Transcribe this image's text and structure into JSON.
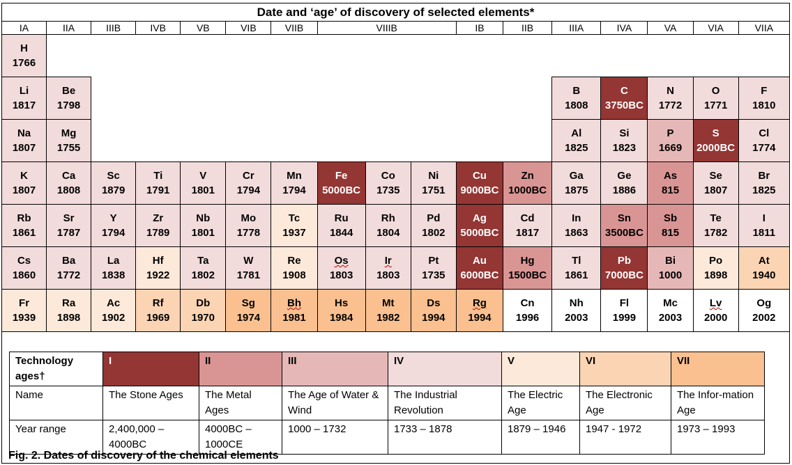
{
  "title": "Date and ‘age’ of discovery of selected elements*",
  "groups": [
    "IA",
    "IIA",
    "IIIB",
    "IVB",
    "VB",
    "VIB",
    "VIIB",
    "VIIIB",
    "IB",
    "IIB",
    "IIIA",
    "IVA",
    "VA",
    "VIA",
    "VIIA"
  ],
  "elements": {
    "H": {
      "symbol": "H",
      "year": "1766"
    },
    "Li": {
      "symbol": "Li",
      "year": "1817"
    },
    "Be": {
      "symbol": "Be",
      "year": "1798"
    },
    "B": {
      "symbol": "B",
      "year": "1808"
    },
    "C": {
      "symbol": "C",
      "year": "3750BC"
    },
    "N": {
      "symbol": "N",
      "year": "1772"
    },
    "O": {
      "symbol": "O",
      "year": "1771"
    },
    "F": {
      "symbol": "F",
      "year": "1810"
    },
    "Na": {
      "symbol": "Na",
      "year": "1807"
    },
    "Mg": {
      "symbol": "Mg",
      "year": "1755"
    },
    "Al": {
      "symbol": "Al",
      "year": "1825"
    },
    "Si": {
      "symbol": "Si",
      "year": "1823"
    },
    "P": {
      "symbol": "P",
      "year": "1669"
    },
    "S": {
      "symbol": "S",
      "year": "2000BC"
    },
    "Cl": {
      "symbol": "Cl",
      "year": "1774"
    },
    "K": {
      "symbol": "K",
      "year": "1807"
    },
    "Ca": {
      "symbol": "Ca",
      "year": "1808"
    },
    "Sc": {
      "symbol": "Sc",
      "year": "1879"
    },
    "Ti": {
      "symbol": "Ti",
      "year": "1791"
    },
    "V": {
      "symbol": "V",
      "year": "1801"
    },
    "Cr": {
      "symbol": "Cr",
      "year": "1794"
    },
    "Mn": {
      "symbol": "Mn",
      "year": "1794"
    },
    "Fe": {
      "symbol": "Fe",
      "year": "5000BC"
    },
    "Co": {
      "symbol": "Co",
      "year": "1735"
    },
    "Ni": {
      "symbol": "Ni",
      "year": "1751"
    },
    "Cu": {
      "symbol": "Cu",
      "year": "9000BC"
    },
    "Zn": {
      "symbol": "Zn",
      "year": "1000BC"
    },
    "Ga": {
      "symbol": "Ga",
      "year": "1875"
    },
    "Ge": {
      "symbol": "Ge",
      "year": "1886"
    },
    "As": {
      "symbol": "As",
      "year": "815"
    },
    "Se": {
      "symbol": "Se",
      "year": "1807"
    },
    "Br": {
      "symbol": "Br",
      "year": "1825"
    },
    "Rb": {
      "symbol": "Rb",
      "year": "1861"
    },
    "Sr": {
      "symbol": "Sr",
      "year": "1787"
    },
    "Y": {
      "symbol": "Y",
      "year": "1794"
    },
    "Zr": {
      "symbol": "Zr",
      "year": "1789"
    },
    "Nb": {
      "symbol": "Nb",
      "year": "1801"
    },
    "Mo": {
      "symbol": "Mo",
      "year": "1778"
    },
    "Tc": {
      "symbol": "Tc",
      "year": "1937"
    },
    "Ru": {
      "symbol": "Ru",
      "year": "1844"
    },
    "Rh": {
      "symbol": "Rh",
      "year": "1804"
    },
    "Pd": {
      "symbol": "Pd",
      "year": "1802"
    },
    "Ag": {
      "symbol": "Ag",
      "year": "5000BC"
    },
    "Cd": {
      "symbol": "Cd",
      "year": "1817"
    },
    "In": {
      "symbol": "In",
      "year": "1863"
    },
    "Sn": {
      "symbol": "Sn",
      "year": "3500BC"
    },
    "Sb": {
      "symbol": "Sb",
      "year": "815"
    },
    "Te": {
      "symbol": "Te",
      "year": "1782"
    },
    "I": {
      "symbol": "I",
      "year": "1811"
    },
    "Cs": {
      "symbol": "Cs",
      "year": "1860"
    },
    "Ba": {
      "symbol": "Ba",
      "year": "1772"
    },
    "La": {
      "symbol": "La",
      "year": "1838"
    },
    "Hf": {
      "symbol": "Hf",
      "year": "1922"
    },
    "Ta": {
      "symbol": "Ta",
      "year": "1802"
    },
    "W": {
      "symbol": "W",
      "year": "1781"
    },
    "Re": {
      "symbol": "Re",
      "year": "1908"
    },
    "Os": {
      "symbol": "Os",
      "year": "1803"
    },
    "Ir": {
      "symbol": "Ir",
      "year": "1803"
    },
    "Pt": {
      "symbol": "Pt",
      "year": "1735"
    },
    "Au": {
      "symbol": "Au",
      "year": "6000BC"
    },
    "Hg": {
      "symbol": "Hg",
      "year": "1500BC"
    },
    "Tl": {
      "symbol": "Tl",
      "year": "1861"
    },
    "Pb": {
      "symbol": "Pb",
      "year": "7000BC"
    },
    "Bi": {
      "symbol": "Bi",
      "year": "1000"
    },
    "Po": {
      "symbol": "Po",
      "year": "1898"
    },
    "At": {
      "symbol": "At",
      "year": "1940"
    },
    "Fr": {
      "symbol": "Fr",
      "year": "1939"
    },
    "Ra": {
      "symbol": "Ra",
      "year": "1898"
    },
    "Ac": {
      "symbol": "Ac",
      "year": "1902"
    },
    "Rf": {
      "symbol": "Rf",
      "year": "1969"
    },
    "Db": {
      "symbol": "Db",
      "year": "1970"
    },
    "Sg": {
      "symbol": "Sg",
      "year": "1974"
    },
    "Bh": {
      "symbol": "Bh",
      "year": "1981"
    },
    "Hs": {
      "symbol": "Hs",
      "year": "1984"
    },
    "Mt": {
      "symbol": "Mt",
      "year": "1982"
    },
    "Ds": {
      "symbol": "Ds",
      "year": "1994"
    },
    "Rg": {
      "symbol": "Rg",
      "year": "1994"
    },
    "Cn": {
      "symbol": "Cn",
      "year": "1996"
    },
    "Nh": {
      "symbol": "Nh",
      "year": "2003"
    },
    "Fl": {
      "symbol": "Fl",
      "year": "1999"
    },
    "Mc": {
      "symbol": "Mc",
      "year": "2003"
    },
    "Lv": {
      "symbol": "Lv",
      "year": "2000"
    },
    "Og": {
      "symbol": "Og",
      "year": "2002"
    }
  },
  "age_colors": {
    "I": "#943634",
    "II": "#d99594",
    "III": "#e5b8b7",
    "IV": "#f2dbdb",
    "V": "#fde9d9",
    "VI": "#fbd4b4",
    "VII": "#fac090",
    "none": "#ffffff"
  },
  "legend": {
    "header": "Technology ages†",
    "name_label": "Name",
    "range_label": "Year range",
    "ages": [
      {
        "numeral": "I",
        "name": "The Stone Ages",
        "range": "2,400,000 – 4000BC"
      },
      {
        "numeral": "II",
        "name": "The Metal Ages",
        "range": "4000BC – 1000CE"
      },
      {
        "numeral": "III",
        "name": "The Age of Water & Wind",
        "range": "1000 – 1732"
      },
      {
        "numeral": "IV",
        "name": "The Industrial Revolution",
        "range": "1733 – 1878"
      },
      {
        "numeral": "V",
        "name": "The Electric Age",
        "range": "1879 – 1946"
      },
      {
        "numeral": "VI",
        "name": "The Electronic Age",
        "range": "1947 - 1972"
      },
      {
        "numeral": "VII",
        "name": "The Infor-mation Age",
        "range": "1973 – 1993"
      }
    ]
  },
  "caption": "Fig. 2. Dates of discovery of the chemical elements"
}
